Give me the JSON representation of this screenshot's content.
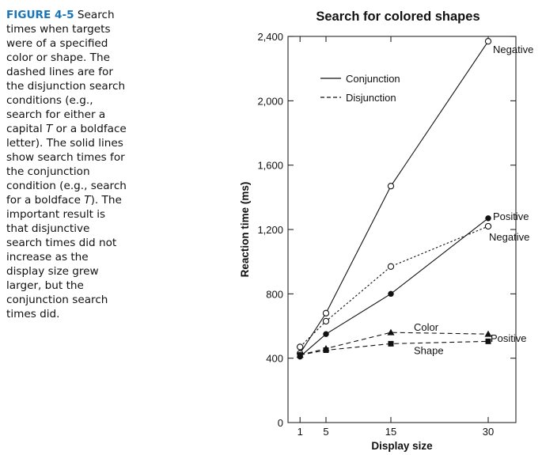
{
  "caption": {
    "label": "FIGURE 4-5",
    "part1": " Search times when targets were of a specified color or shape. The dashed lines are for the disjunction search conditions (e.g., search for either a capital ",
    "italic_t1": "T",
    "part2": " or a boldface letter). The solid lines show search times for the conjunction condition (e.g., search for a boldface ",
    "italic_t2": "T",
    "part3": "). The important result is that disjunctive search times did not increase as the display size grew larger, but the conjunction search times did."
  },
  "chart_data": {
    "type": "line",
    "title": "Search for colored shapes",
    "xlabel": "Display size",
    "ylabel": "Reaction time (ms)",
    "xlim": [
      0,
      38
    ],
    "ylim": [
      0,
      2400
    ],
    "xticks": [
      1,
      5,
      15,
      30
    ],
    "xtick_labels": [
      "1",
      "5",
      "15",
      "30"
    ],
    "yticks": [
      0,
      400,
      800,
      1200,
      1600,
      2000,
      2400
    ],
    "ytick_labels": [
      "0",
      "400",
      "800",
      "1,200",
      "1,600",
      "2,000",
      "2,400"
    ],
    "grid": false,
    "legend": {
      "position": "top-left",
      "entries": [
        {
          "label": "Conjunction",
          "style": "solid"
        },
        {
          "label": "Disjunction",
          "style": "dashed"
        }
      ]
    },
    "series": [
      {
        "style": "solid",
        "marker": "open-circle",
        "annotation": "Negative",
        "x": [
          1,
          5,
          15,
          30
        ],
        "y": [
          430,
          680,
          1470,
          2370
        ]
      },
      {
        "style": "solid",
        "marker": "filled-circle",
        "annotation": "Positive",
        "x": [
          1,
          5,
          15,
          30
        ],
        "y": [
          410,
          550,
          800,
          1270
        ]
      },
      {
        "style": "dotted",
        "marker": "open-circle",
        "annotation": "Negative",
        "x": [
          1,
          5,
          15,
          30
        ],
        "y": [
          470,
          630,
          970,
          1220
        ]
      },
      {
        "style": "dashed",
        "marker": "filled-triangle",
        "annotation": "Color",
        "x": [
          1,
          5,
          15,
          30
        ],
        "y": [
          420,
          460,
          560,
          550
        ]
      },
      {
        "style": "dashed",
        "marker": "filled-square",
        "annotation": "Shape",
        "x": [
          1,
          5,
          15,
          30
        ],
        "y": [
          420,
          450,
          490,
          505
        ]
      }
    ],
    "extra_annotations": [
      {
        "text": "Positive",
        "refers_to": [
          "Color",
          "Shape"
        ]
      }
    ],
    "colors": {
      "ink": "#111111",
      "caption_label": "#1a74b8"
    }
  }
}
